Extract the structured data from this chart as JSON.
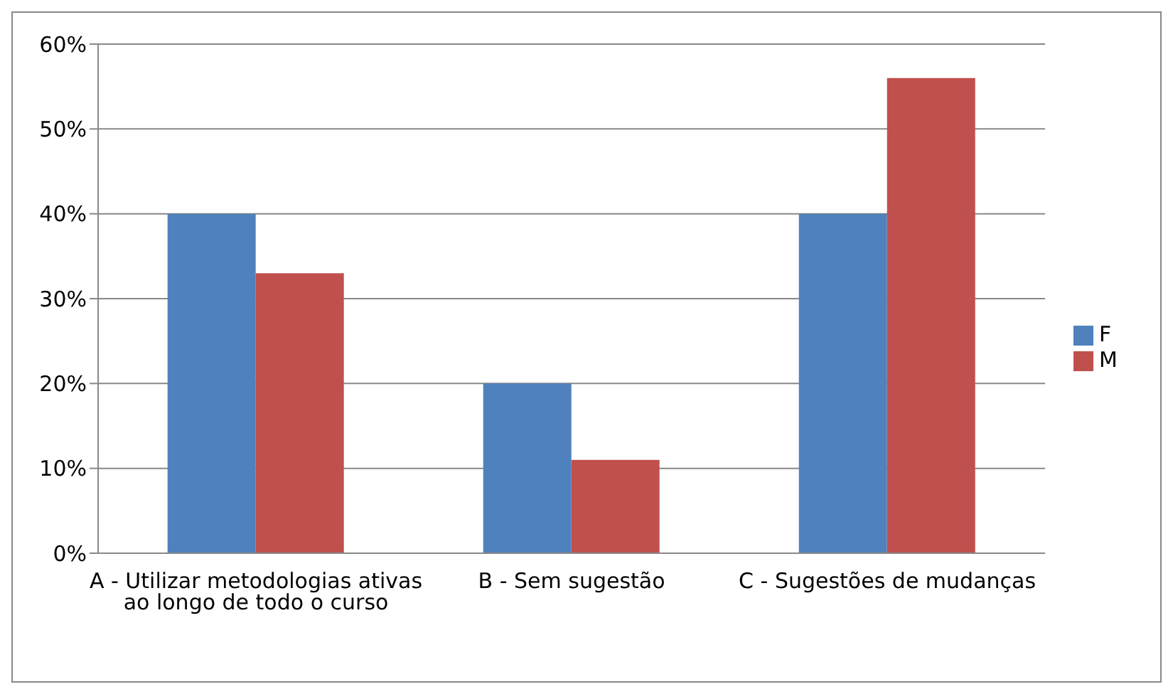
{
  "chart_data": {
    "type": "bar",
    "categories": [
      "A - Utilizar metodologias ativas ao longo de todo o curso",
      "B - Sem sugestão",
      "C - Sugestões de mudanças"
    ],
    "series": [
      {
        "name": "F",
        "color": "#4f81bd",
        "values": [
          40,
          20,
          40
        ]
      },
      {
        "name": "M",
        "color": "#c0504d",
        "values": [
          33,
          11,
          56
        ]
      }
    ],
    "ylim": [
      0,
      60
    ],
    "yticks": [
      {
        "value": 0,
        "label": "0%"
      },
      {
        "value": 10,
        "label": "10%"
      },
      {
        "value": 20,
        "label": "20%"
      },
      {
        "value": 30,
        "label": "30%"
      },
      {
        "value": 40,
        "label": "40%"
      },
      {
        "value": 50,
        "label": "50%"
      },
      {
        "value": 60,
        "label": "60%"
      }
    ],
    "grid": "y",
    "legend": "right"
  }
}
